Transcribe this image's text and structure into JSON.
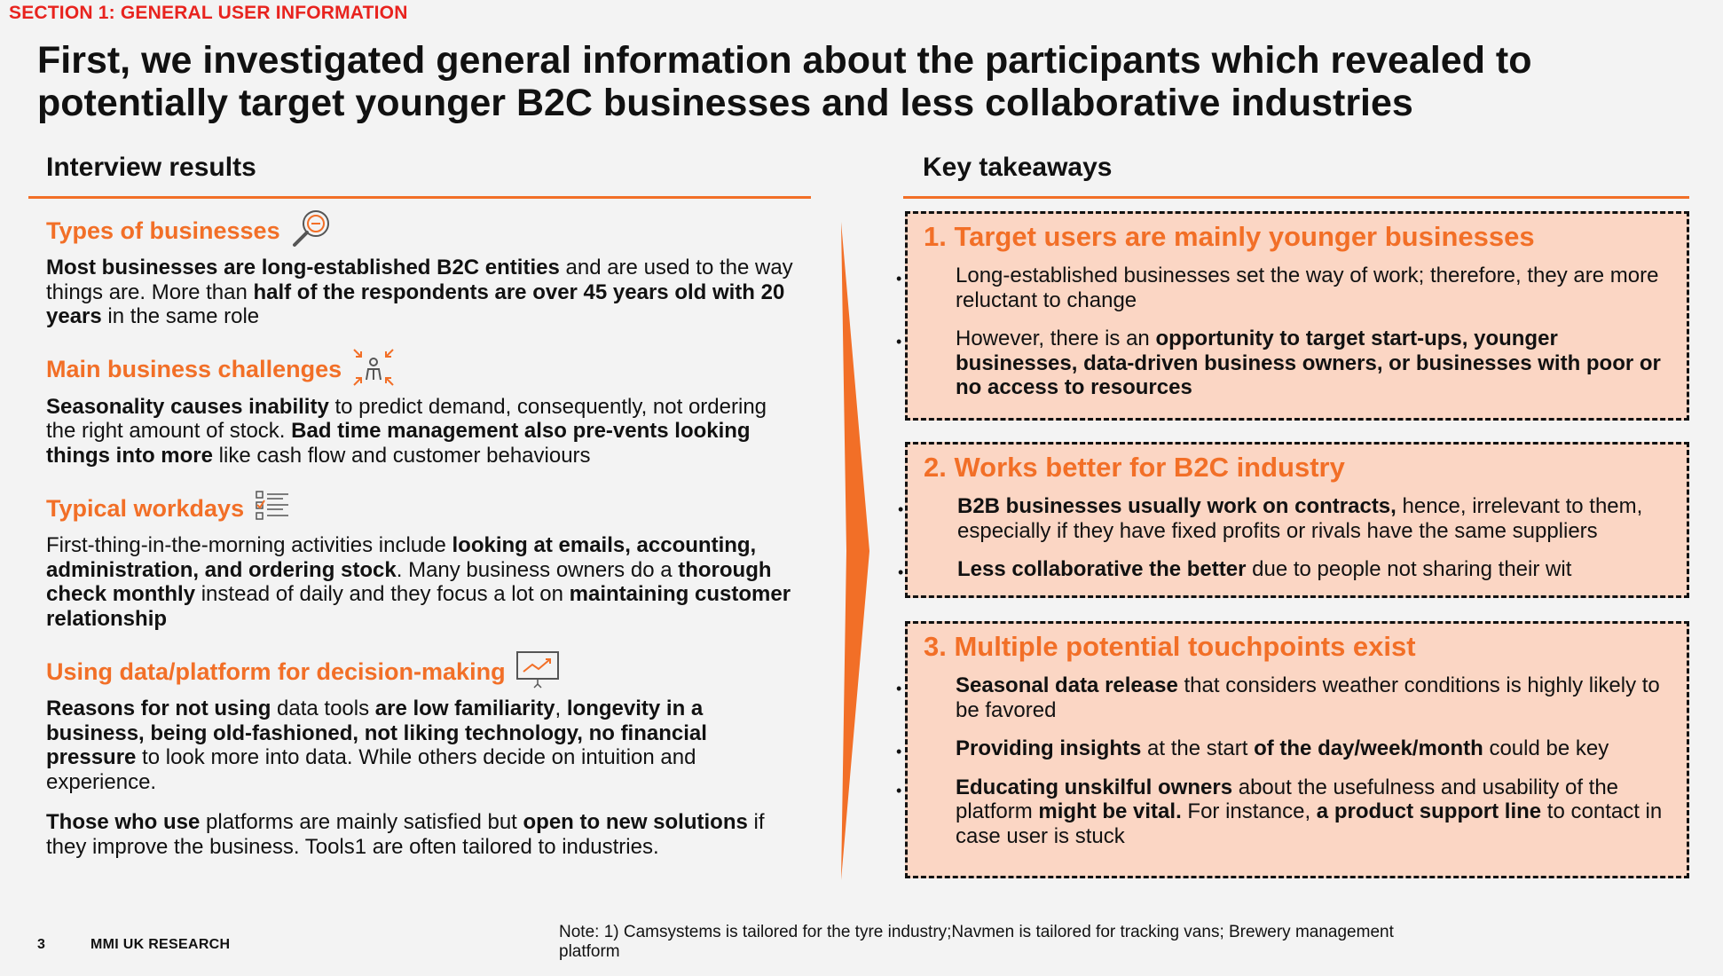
{
  "section_tag": "SECTION 1: GENERAL USER INFORMATION",
  "title": "First, we investigated general information about the participants which revealed to potentially target younger B2C businesses and less collaborative industries",
  "left_heading": "Interview results",
  "right_heading": "Key takeaways",
  "colors": {
    "accent": "#f26f27",
    "section_red": "#e8231e",
    "box_fill": "#fbd6c4"
  },
  "blocks": [
    {
      "heading": "Types of businesses",
      "icon": "magnifier-icon",
      "paragraphs": [
        [
          {
            "t": "Most businesses are long-established B2C entities",
            "b": true
          },
          {
            "t": " and are used to the way things are. More than ",
            "b": false
          },
          {
            "t": "half of the respondents are over 45 years old with 20 years",
            "b": true
          },
          {
            "t": " in the same role",
            "b": false
          }
        ]
      ]
    },
    {
      "heading": "Main business challenges",
      "icon": "pressure-person-icon",
      "paragraphs": [
        [
          {
            "t": "Seasonality causes inability",
            "b": true
          },
          {
            "t": " to predict demand, consequently, not ordering the right amount of stock. ",
            "b": false
          },
          {
            "t": "Bad time management also pre-vents looking things into more",
            "b": true
          },
          {
            "t": " like cash flow and customer behaviours",
            "b": false
          }
        ]
      ]
    },
    {
      "heading": "Typical workdays",
      "icon": "checklist-icon",
      "paragraphs": [
        [
          {
            "t": "First-thing-in-the-morning activities include ",
            "b": false
          },
          {
            "t": "looking at emails, accounting, administration, and ordering stock",
            "b": true
          },
          {
            "t": ". Many business owners do a ",
            "b": false
          },
          {
            "t": "thorough check monthly",
            "b": true
          },
          {
            "t": " instead of daily and they focus a lot on ",
            "b": false
          },
          {
            "t": "maintaining customer relationship",
            "b": true
          }
        ]
      ]
    },
    {
      "heading": "Using data/platform for decision-making",
      "icon": "presentation-chart-icon",
      "paragraphs": [
        [
          {
            "t": "Reasons for not using",
            "b": true
          },
          {
            "t": " data tools ",
            "b": false
          },
          {
            "t": "are low familiarity",
            "b": true
          },
          {
            "t": ",  ",
            "b": false
          },
          {
            "t": "longevity in a business, being old-fashioned, not liking technology, no financial pressure",
            "b": true
          },
          {
            "t": " to look more into data. While others decide on intuition and experience.",
            "b": false
          }
        ],
        [
          {
            "t": "Those who use",
            "b": true
          },
          {
            "t": " platforms are mainly satisfied but ",
            "b": false
          },
          {
            "t": "open to new solutions",
            "b": true
          },
          {
            "t": " if they improve the business. Tools1 are often tailored to industries.",
            "b": false
          }
        ]
      ]
    }
  ],
  "takeaways": [
    {
      "title": "1. Target users are mainly younger businesses",
      "items": [
        [
          {
            "t": "Long-established businesses set the way of work; therefore, they are more reluctant to change",
            "b": false
          }
        ],
        [
          {
            "t": "However, there is an ",
            "b": false
          },
          {
            "t": "opportunity to target start-ups, younger businesses, data-driven business owners, or businesses with poor or no access to resources",
            "b": true
          }
        ]
      ]
    },
    {
      "title": "2. Works better for B2C industry",
      "items": [
        [
          {
            "t": "B2B businesses usually work on contracts,",
            "b": true
          },
          {
            "t": " hence, irrelevant to them, especially if they have fixed profits or rivals have the same suppliers",
            "b": false
          }
        ],
        [
          {
            "t": "Less collaborative the better",
            "b": true
          },
          {
            "t": " due to people not sharing their wit",
            "b": false
          }
        ]
      ]
    },
    {
      "title": "3. Multiple potential touchpoints exist",
      "items": [
        [
          {
            "t": "Seasonal data release",
            "b": true
          },
          {
            "t": " that considers weather conditions is highly likely to be favored",
            "b": false
          }
        ],
        [
          {
            "t": "Providing insights",
            "b": true
          },
          {
            "t": " at the start ",
            "b": false
          },
          {
            "t": "of the day/week/month",
            "b": true
          },
          {
            "t": " could be key",
            "b": false
          }
        ],
        [
          {
            "t": "Educating unskilful owners",
            "b": true
          },
          {
            "t": " about the usefulness and usability of the platform ",
            "b": false
          },
          {
            "t": "might be vital.",
            "b": true
          },
          {
            "t": " For instance, ",
            "b": false
          },
          {
            "t": "a product support line",
            "b": true
          },
          {
            "t": " to contact in case user is stuck",
            "b": false
          }
        ]
      ]
    }
  ],
  "footer": {
    "page_number": "3",
    "brand": "MMI UK RESEARCH",
    "note": "Note: 1) Camsystems is tailored for the tyre industry;Navmen is tailored for tracking vans; Brewery management platform"
  }
}
